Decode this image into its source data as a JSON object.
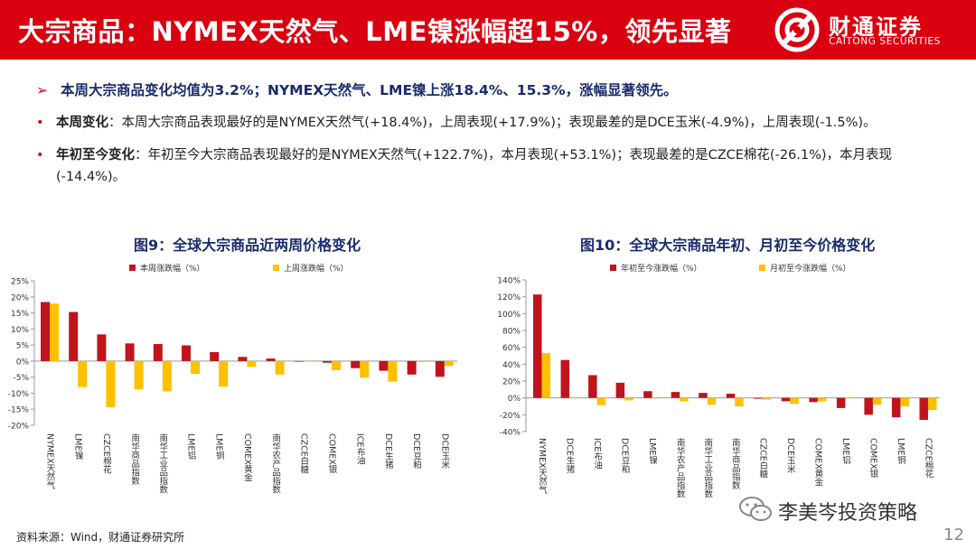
{
  "header": {
    "title": "大宗商品：NYMEX天然气、LME镍涨幅超15%，领先显著"
  },
  "logo": {
    "cn": "财通证券",
    "en": "CAITONG SECURITIES"
  },
  "summary": {
    "arrow": "➢",
    "text": "本周大宗商品变化均值为3.2%；NYMEX天然气、LME镍上涨18.4%、15.3%，涨幅显著领先。"
  },
  "bullets": [
    {
      "dot": "•",
      "label": "本周变化",
      "text": "：本周大宗商品表现最好的是NYMEX天然气(+18.4%)，上周表现(+17.9%)；表现最差的是DCE玉米(-4.9%)，上周表现(-1.5%)。"
    },
    {
      "dot": "•",
      "label": "年初至今变化",
      "text": "：年初至今大宗商品表现最好的是NYMEX天然气(+122.7%)，本月表现(+53.1%)；表现最差的是CZCE棉花(-26.1%)，本月表现(-14.4%)。"
    }
  ],
  "colors": {
    "red": "#c0141c",
    "yellow": "#ffc000",
    "brand": "#d9000f",
    "navy": "#1a2b6d"
  },
  "chart_data": [
    {
      "type": "bar",
      "title": "图9：全球大宗商品近两周价格变化",
      "categories": [
        "NYMEX天然气",
        "LME镍",
        "CZCE棉花",
        "南华商品指数",
        "南华工业品指数",
        "LME铝",
        "LME铜",
        "COMEX黄金",
        "南华农产品指数",
        "CZCE白糖",
        "COMEX银",
        "ICE布油",
        "DCE生猪",
        "DCE豆粕",
        "DCE玉米"
      ],
      "series": [
        {
          "name": "本周涨跌幅（%）",
          "color": "#c0141c",
          "values": [
            18.4,
            15.3,
            8.3,
            5.5,
            5.3,
            4.9,
            2.8,
            1.3,
            0.8,
            -0.2,
            -0.5,
            -2.2,
            -3.0,
            -4.2,
            -4.9
          ]
        },
        {
          "name": "上周涨跌幅（%）",
          "color": "#ffc000",
          "values": [
            17.9,
            -8.1,
            -14.4,
            -8.8,
            -9.4,
            -4.0,
            -8.0,
            -1.8,
            -4.2,
            -0.2,
            -2.8,
            -5.2,
            -6.4,
            -0.3,
            -1.5
          ]
        }
      ],
      "yticks": [
        "25%",
        "20%",
        "15%",
        "10%",
        "5%",
        "0%",
        "-5%",
        "-10%",
        "-15%",
        "-20%"
      ],
      "ylim": [
        -20,
        25
      ],
      "legend": "top"
    },
    {
      "type": "bar",
      "title": "图10：全球大宗商品年初、月初至今价格变化",
      "categories": [
        "NYMEX天然气",
        "DCE生猪",
        "ICE布油",
        "DCE豆粕",
        "LME镍",
        "南华农产品指数",
        "南华工业品指数",
        "南华商品指数",
        "CZCE白糖",
        "DCE玉米",
        "COMEX黄金",
        "LME铝",
        "COMEX银",
        "LME铜",
        "CZCE棉花"
      ],
      "series": [
        {
          "name": "年初至今涨跌幅（%）",
          "color": "#c0141c",
          "values": [
            122.7,
            45.0,
            27.0,
            18.0,
            8.0,
            7.0,
            6.0,
            5.0,
            -1.0,
            -4.0,
            -5.0,
            -12.0,
            -20.0,
            -23.0,
            -26.1
          ]
        },
        {
          "name": "月初至今涨跌幅（%）",
          "color": "#ffc000",
          "values": [
            53.1,
            0,
            -8.5,
            -3.0,
            0,
            -4.0,
            -8.0,
            -10.0,
            -2.0,
            -7.0,
            -4.0,
            0,
            -8.0,
            -10.0,
            -14.4
          ]
        }
      ],
      "yticks": [
        "140%",
        "120%",
        "100%",
        "80%",
        "60%",
        "40%",
        "20%",
        "0%",
        "-20%",
        "-40%"
      ],
      "ylim": [
        -40,
        140
      ],
      "legend": "top"
    }
  ],
  "footer": {
    "source": "资料来源：Wind，财通证券研究所"
  },
  "watermark": {
    "name": "李美岑投资策略"
  },
  "page": {
    "number": "12"
  }
}
